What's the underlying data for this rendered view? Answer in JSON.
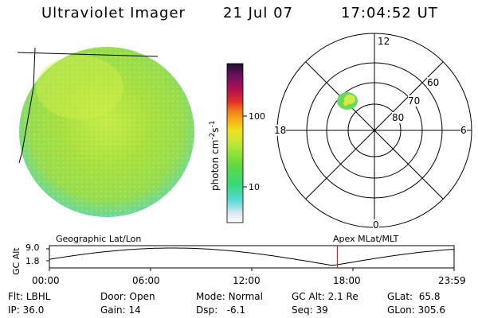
{
  "header": {
    "instrument": "Ultraviolet Imager",
    "date": "21 Jul 07",
    "time": "17:04:52 UT"
  },
  "colorbar": {
    "label": "photon cm",
    "superscript_1": "-2",
    "label_mid": "s",
    "superscript_2": "-1",
    "ticks": [
      "100",
      "10"
    ]
  },
  "polar_plot": {
    "mlt_labels": {
      "top": "12",
      "left": "18",
      "right": "6",
      "bottom": "0"
    },
    "lat_labels": [
      "60",
      "70",
      "80"
    ]
  },
  "orbit_panel": {
    "y_label": "GC Alt",
    "y_ticks": [
      "9.0",
      "1.8"
    ],
    "left_caption": "Geographic Lat/Lon",
    "right_caption": "Apex MLat/MLT",
    "x_ticks": [
      "00:00",
      "06:00",
      "12:00",
      "18:00",
      "23:59"
    ],
    "current_time_marker_hours": 17.08
  },
  "info": {
    "row1": [
      {
        "label": "Flt:",
        "value": "LBHL"
      },
      {
        "label": "Door:",
        "value": "Open"
      },
      {
        "label": "Mode:",
        "value": "Normal"
      },
      {
        "label": "GC Alt:",
        "value": "2.1 Re"
      },
      {
        "label": "GLat:",
        "value": "65.8"
      }
    ],
    "row2": [
      {
        "label": "IP:",
        "value": "36.0"
      },
      {
        "label": "Gain:",
        "value": "14"
      },
      {
        "label": "Dsp:",
        "value": "-6.1"
      },
      {
        "label": "Seq:",
        "value": "39"
      },
      {
        "label": "GLon:",
        "value": "305.6"
      }
    ]
  },
  "colors": {
    "disk_main": "#a8e040",
    "disk_yellow": "#d8f048",
    "disk_edge": "#58d8b0",
    "marker": "#d02020"
  }
}
